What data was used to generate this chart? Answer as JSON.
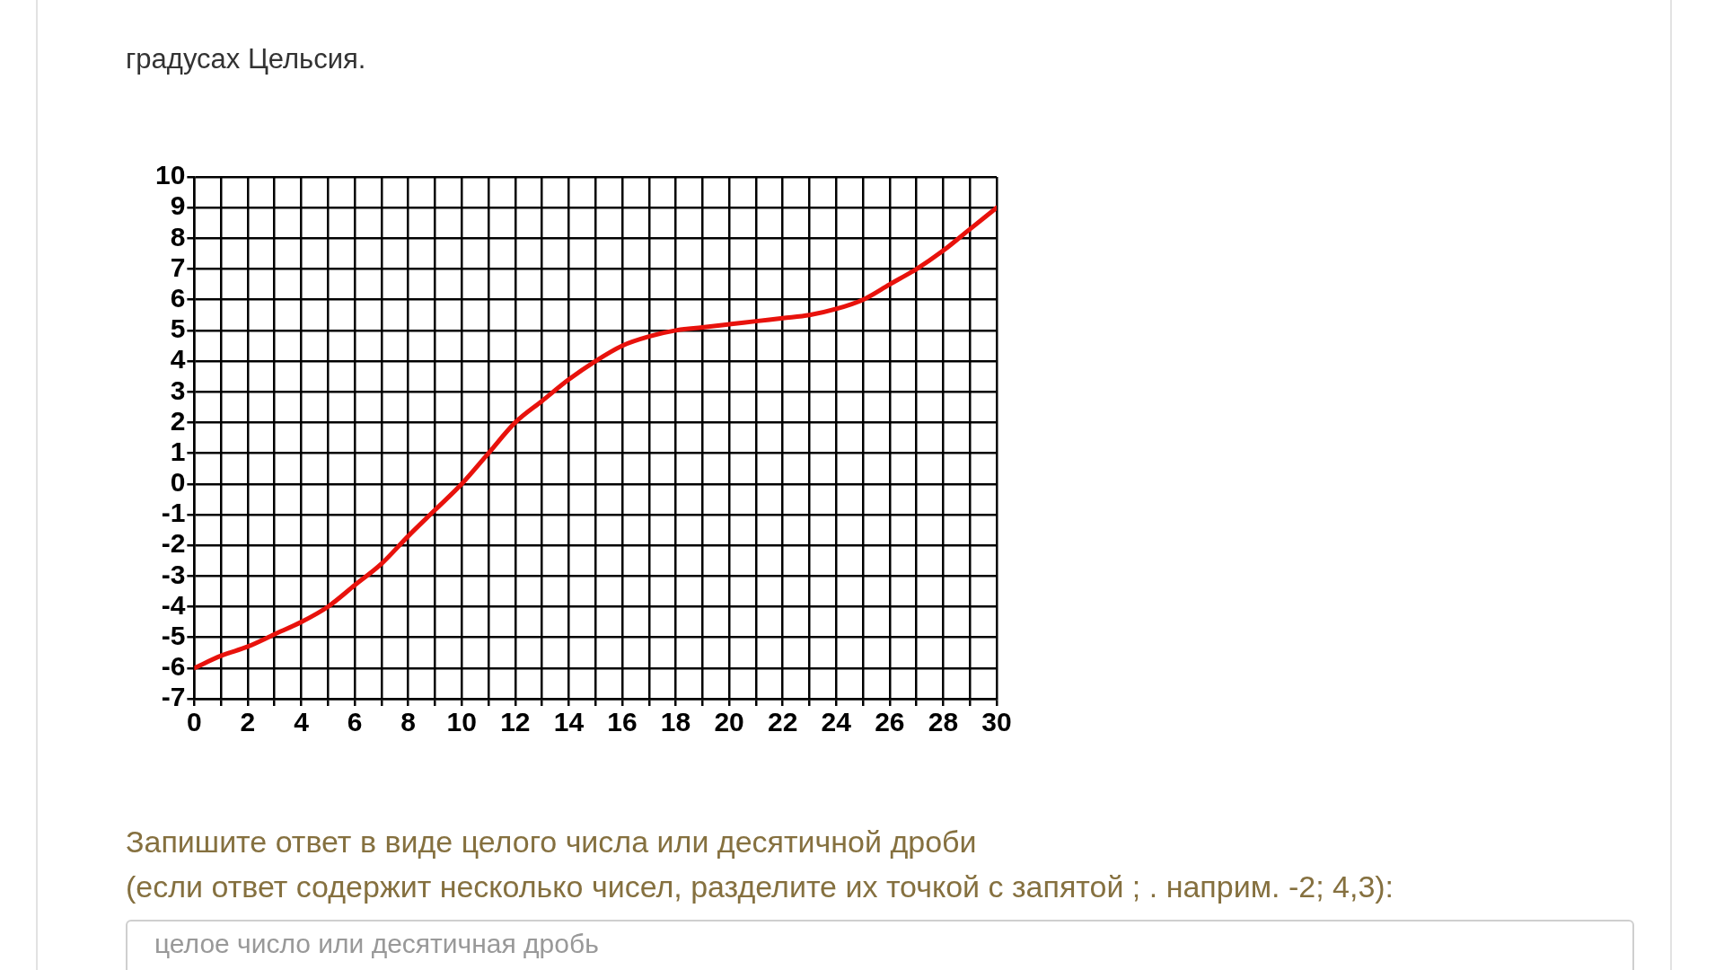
{
  "chart_data": {
    "type": "line",
    "title": "градусах Цельсия.",
    "annotations": [
      "Запишите ответ в виде целого числа или десятичной дроби",
      "(если ответ содержит несколько чисел, разделите их точкой с запятой ; . наприм. -2; 4,3):",
      "целое число или десятичная дробь"
    ],
    "x": [
      0,
      1,
      2,
      3,
      4,
      5,
      6,
      7,
      8,
      9,
      10,
      11,
      12,
      13,
      14,
      15,
      16,
      17,
      18,
      19,
      20,
      21,
      22,
      23,
      24,
      25,
      26,
      27,
      28,
      29,
      30
    ],
    "series": [
      {
        "color": "#e8120c",
        "values": [
          -6,
          -5.6,
          -5.3,
          -4.9,
          -4.5,
          -4,
          -3.3,
          -2.6,
          -1.7,
          -0.85,
          0,
          1,
          2,
          2.7,
          3.4,
          4,
          4.5,
          4.8,
          5,
          5.1,
          5.2,
          5.3,
          5.4,
          5.5,
          5.7,
          6,
          6.5,
          7,
          7.6,
          8.3,
          9
        ]
      }
    ],
    "xlim": [
      0,
      30
    ],
    "xticks": [
      0,
      {
        "value": 1,
        "label": null
      },
      2,
      {
        "value": 3,
        "label": null
      },
      4,
      {
        "value": 5,
        "label": null
      },
      6,
      {
        "value": 7,
        "label": null
      },
      8,
      {
        "value": 9,
        "label": null
      },
      10,
      {
        "value": 11,
        "label": null
      },
      12,
      {
        "value": 13,
        "label": null
      },
      14,
      {
        "value": 15,
        "label": null
      },
      16,
      {
        "value": 17,
        "label": null
      },
      18,
      {
        "value": 19,
        "label": null
      },
      20,
      {
        "value": 21,
        "label": null
      },
      22,
      {
        "value": 23,
        "label": null
      },
      24,
      {
        "value": 25,
        "label": null
      },
      26,
      {
        "value": 27,
        "label": null
      },
      28,
      {
        "value": 29,
        "label": null
      },
      30
    ],
    "ylim": [
      -7,
      10
    ],
    "yticks": [
      -7,
      -6,
      -5,
      -4,
      -3,
      -2,
      -1,
      0,
      1,
      2,
      3,
      4,
      5,
      6,
      7,
      8,
      9,
      10
    ],
    "grid": true,
    "legend": false,
    "marker": "none",
    "line_style": "solid"
  }
}
